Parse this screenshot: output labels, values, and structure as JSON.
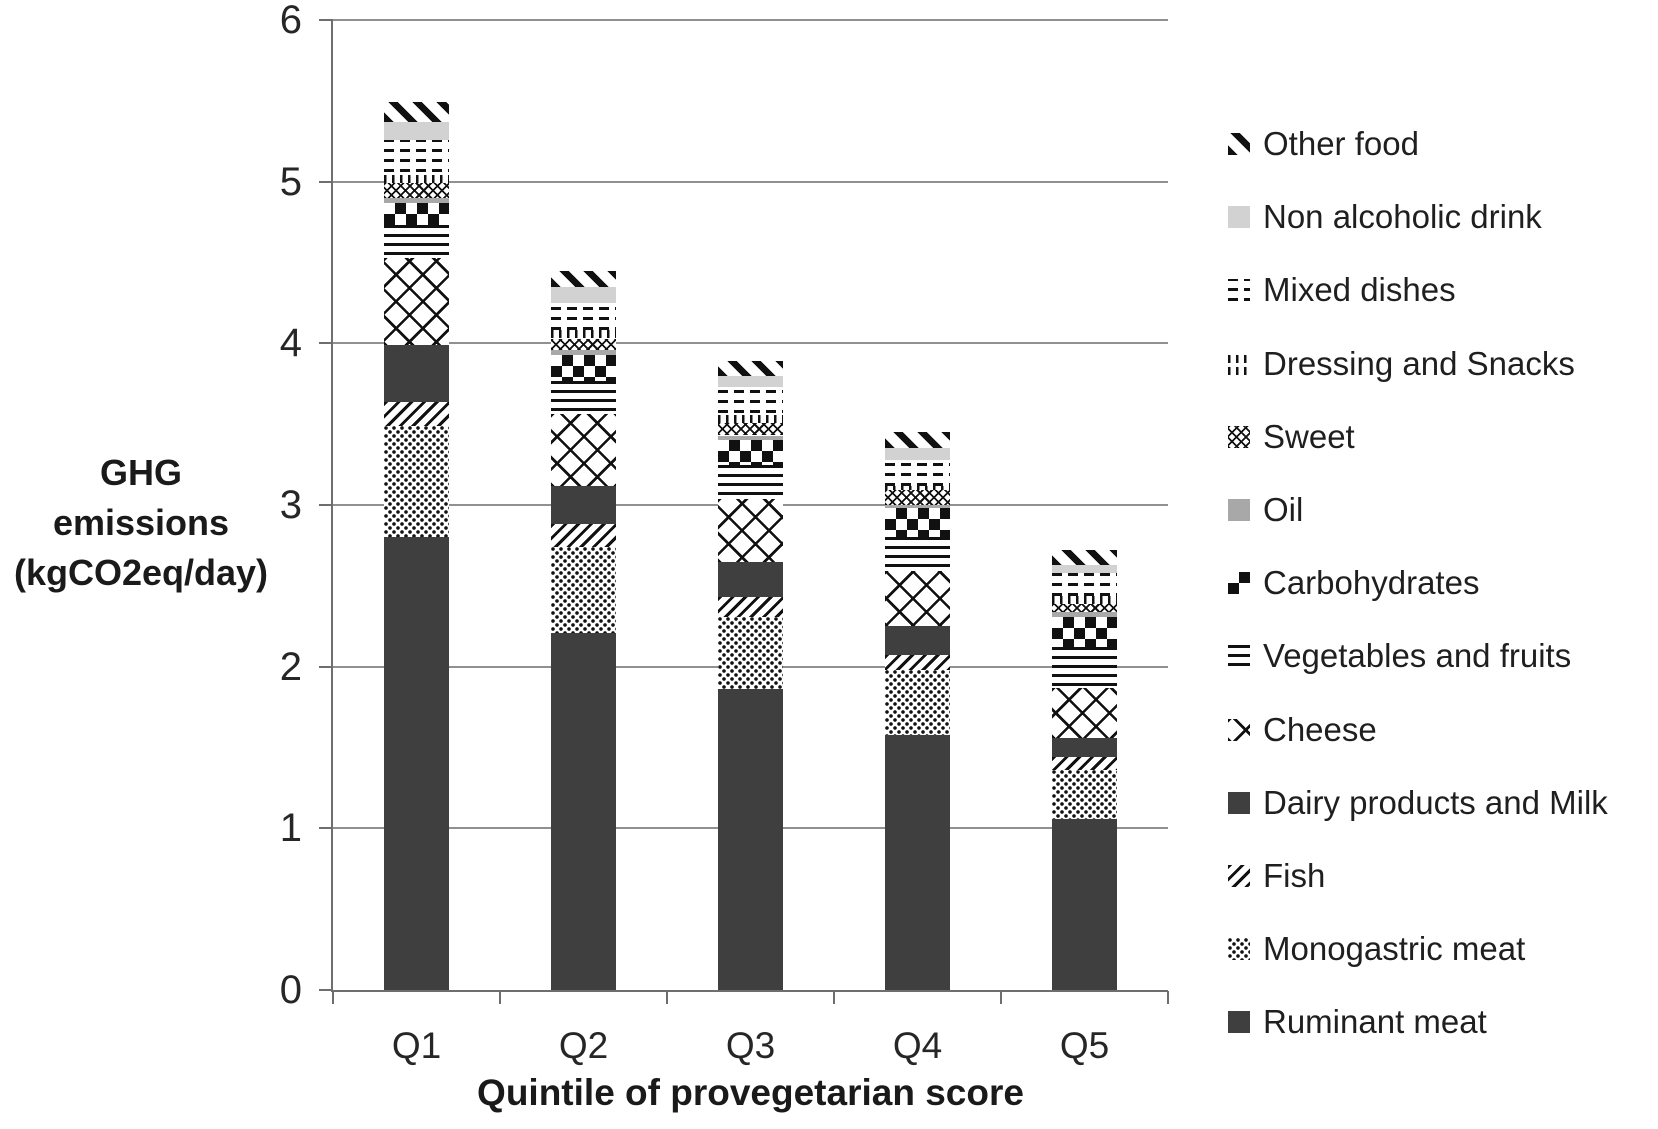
{
  "y_axis": {
    "title_lines": [
      "GHG emissions",
      "(kgCO2eq/day)"
    ],
    "tick_labels": [
      "6",
      "5",
      "4",
      "3",
      "2",
      "1",
      "0"
    ],
    "min": 0,
    "max": 6
  },
  "x_axis": {
    "title": "Quintile of provegetarian score",
    "categories": [
      "Q1",
      "Q2",
      "Q3",
      "Q4",
      "Q5"
    ]
  },
  "legend": {
    "position": "right",
    "order": "reverse of stacking (top segment listed first)",
    "labels_top_to_bottom": [
      "Other food",
      "Non alcoholic drink",
      "Mixed dishes",
      "Dressing and Snacks",
      "Sweet",
      "Oil",
      "Carbohydrates",
      "Vegetables and fruits",
      "Cheese",
      "Dairy products and Milk",
      "Fish",
      "Monogastric meat",
      "Ruminant meat"
    ]
  },
  "chart_data": {
    "type": "bar",
    "stacked": true,
    "title": "",
    "xlabel": "Quintile of provegetarian score",
    "ylabel": "GHG emissions (kgCO2eq/day)",
    "ylim": [
      0,
      6
    ],
    "grid": "horizontal",
    "categories": [
      "Q1",
      "Q2",
      "Q3",
      "Q4",
      "Q5"
    ],
    "series": [
      {
        "id": "ruminant-meat",
        "name": "Ruminant meat",
        "pattern": "solid-dark",
        "values": [
          2.8,
          2.21,
          1.86,
          1.58,
          1.06
        ]
      },
      {
        "id": "monogastric-meat",
        "name": "Monogastric meat",
        "pattern": "dots",
        "values": [
          0.69,
          0.53,
          0.45,
          0.4,
          0.3
        ]
      },
      {
        "id": "fish",
        "name": "Fish",
        "pattern": "diagonal-thin",
        "values": [
          0.15,
          0.14,
          0.12,
          0.09,
          0.08
        ]
      },
      {
        "id": "dairy-products-milk",
        "name": "Dairy products and Milk",
        "pattern": "solid-dark",
        "values": [
          0.35,
          0.24,
          0.22,
          0.18,
          0.12
        ]
      },
      {
        "id": "cheese",
        "name": "Cheese",
        "pattern": "diamond-large",
        "values": [
          0.54,
          0.44,
          0.39,
          0.34,
          0.31
        ]
      },
      {
        "id": "vegetables-fruits",
        "name": "Vegetables and fruits",
        "pattern": "hlines",
        "values": [
          0.2,
          0.21,
          0.21,
          0.21,
          0.25
        ]
      },
      {
        "id": "carbohydrates",
        "name": "Carbohydrates",
        "pattern": "checker",
        "values": [
          0.14,
          0.16,
          0.15,
          0.18,
          0.19
        ]
      },
      {
        "id": "oil",
        "name": "Oil",
        "pattern": "solid-mid",
        "values": [
          0.03,
          0.03,
          0.03,
          0.02,
          0.03
        ]
      },
      {
        "id": "sweet",
        "name": "Sweet",
        "pattern": "diamond-small",
        "values": [
          0.09,
          0.07,
          0.08,
          0.09,
          0.05
        ]
      },
      {
        "id": "dressing-snacks",
        "name": "Dressing and Snacks",
        "pattern": "vdashes",
        "values": [
          0.07,
          0.05,
          0.06,
          0.03,
          0.05
        ]
      },
      {
        "id": "mixed-dishes",
        "name": "Mixed dishes",
        "pattern": "hdashes",
        "values": [
          0.2,
          0.17,
          0.16,
          0.16,
          0.14
        ]
      },
      {
        "id": "non-alcoholic-drink",
        "name": "Non alcoholic drink",
        "pattern": "solid-light",
        "values": [
          0.11,
          0.1,
          0.07,
          0.07,
          0.05
        ]
      },
      {
        "id": "other-food",
        "name": "Other food",
        "pattern": "diagonal-bold",
        "values": [
          0.12,
          0.1,
          0.09,
          0.1,
          0.09
        ]
      }
    ],
    "stack_totals": [
      5.49,
      4.45,
      3.89,
      3.45,
      2.72
    ]
  },
  "colors": {
    "dark_fill": "#3f3f3f",
    "mid_gray_fill": "#a8a8a8",
    "light_gray_fill": "#d2d2d2",
    "pattern_ink": "#111111",
    "gridline": "#909090",
    "axis": "#6e6e6e",
    "text": "#1f1f1f"
  }
}
